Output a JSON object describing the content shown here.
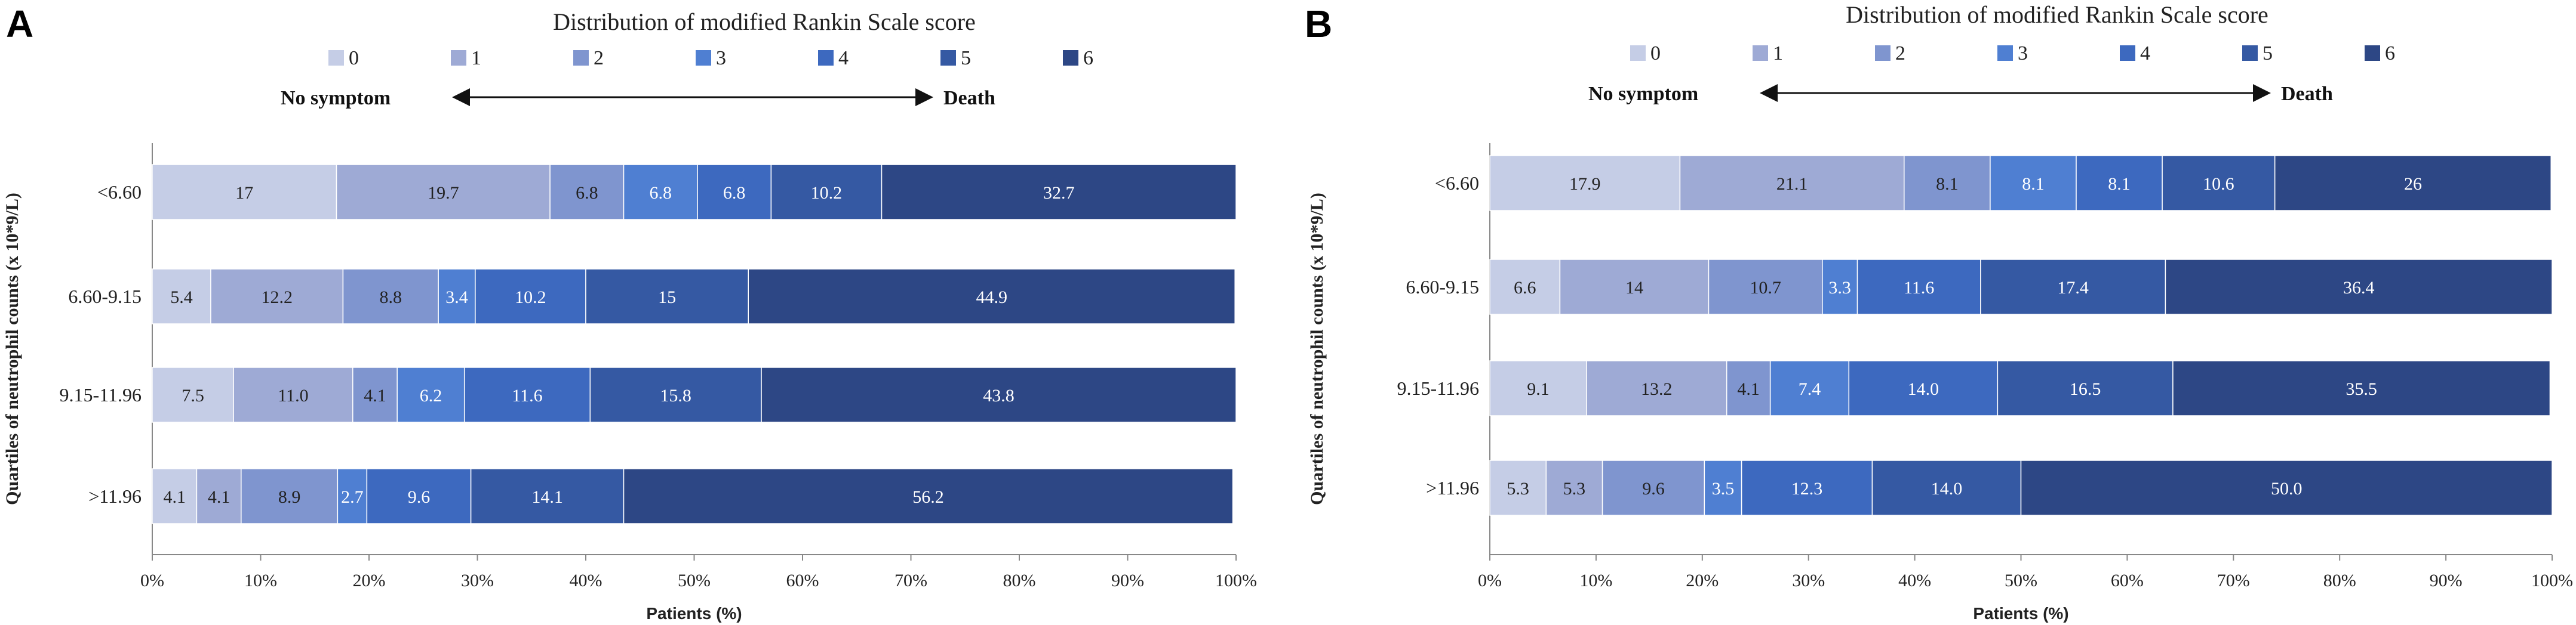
{
  "chart_data": [
    {
      "panel": "A",
      "type": "bar",
      "orientation": "horizontal",
      "stacked": true,
      "title": "Distribution of modified Rankin Scale score",
      "xlabel": "Patients (%)",
      "ylabel": "Quartiles of neutrophil counts (x 10*9/L)",
      "xlim": [
        0,
        100
      ],
      "xticks": [
        "0%",
        "10%",
        "20%",
        "30%",
        "40%",
        "50%",
        "60%",
        "70%",
        "80%",
        "90%",
        "100%"
      ],
      "scale_left": "No symptom",
      "scale_right": "Death",
      "legend": [
        "0",
        "1",
        "2",
        "3",
        "4",
        "5",
        "6"
      ],
      "categories": [
        "<6.60",
        "6.60-9.15",
        "9.15-11.96",
        ">11.96"
      ],
      "series": [
        {
          "name": "0",
          "values": [
            17,
            5.4,
            7.5,
            4.1
          ],
          "labels": [
            "17",
            "5.4",
            "7.5",
            "4.1"
          ]
        },
        {
          "name": "1",
          "values": [
            19.7,
            12.2,
            11.0,
            4.1
          ],
          "labels": [
            "19.7",
            "12.2",
            "11.0",
            "4.1"
          ]
        },
        {
          "name": "2",
          "values": [
            6.8,
            8.8,
            4.1,
            8.9
          ],
          "labels": [
            "6.8",
            "8.8",
            "4.1",
            "8.9"
          ]
        },
        {
          "name": "3",
          "values": [
            6.8,
            3.4,
            6.2,
            2.7
          ],
          "labels": [
            "6.8",
            "3.4",
            "6.2",
            "2.7"
          ]
        },
        {
          "name": "4",
          "values": [
            6.8,
            10.2,
            11.6,
            9.6
          ],
          "labels": [
            "6.8",
            "10.2",
            "11.6",
            "9.6"
          ]
        },
        {
          "name": "5",
          "values": [
            10.2,
            15,
            15.8,
            14.1
          ],
          "labels": [
            "10.2",
            "15",
            "15.8",
            "14.1"
          ]
        },
        {
          "name": "6",
          "values": [
            32.7,
            44.9,
            43.8,
            56.2
          ],
          "labels": [
            "32.7",
            "44.9",
            "43.8",
            "56.2"
          ]
        }
      ]
    },
    {
      "panel": "B",
      "type": "bar",
      "orientation": "horizontal",
      "stacked": true,
      "title": "Distribution of modified Rankin Scale score",
      "xlabel": "Patients (%)",
      "ylabel": "Quartiles of neutrophil counts (x 10*9/L)",
      "xlim": [
        0,
        100
      ],
      "xticks": [
        "0%",
        "10%",
        "20%",
        "30%",
        "40%",
        "50%",
        "60%",
        "70%",
        "80%",
        "90%",
        "100%"
      ],
      "scale_left": "No symptom",
      "scale_right": "Death",
      "legend": [
        "0",
        "1",
        "2",
        "3",
        "4",
        "5",
        "6"
      ],
      "categories": [
        "<6.60",
        "6.60-9.15",
        "9.15-11.96",
        ">11.96"
      ],
      "series": [
        {
          "name": "0",
          "values": [
            17.9,
            6.6,
            9.1,
            5.3
          ],
          "labels": [
            "17.9",
            "6.6",
            "9.1",
            "5.3"
          ]
        },
        {
          "name": "1",
          "values": [
            21.1,
            14,
            13.2,
            5.3
          ],
          "labels": [
            "21.1",
            "14",
            "13.2",
            "5.3"
          ]
        },
        {
          "name": "2",
          "values": [
            8.1,
            10.7,
            4.1,
            9.6
          ],
          "labels": [
            "8.1",
            "10.7",
            "4.1",
            "9.6"
          ]
        },
        {
          "name": "3",
          "values": [
            8.1,
            3.3,
            7.4,
            3.5
          ],
          "labels": [
            "8.1",
            "3.3",
            "7.4",
            "3.5"
          ]
        },
        {
          "name": "4",
          "values": [
            8.1,
            11.6,
            14.0,
            12.3
          ],
          "labels": [
            "8.1",
            "11.6",
            "14.0",
            "12.3"
          ]
        },
        {
          "name": "5",
          "values": [
            10.6,
            17.4,
            16.5,
            14.0
          ],
          "labels": [
            "10.6",
            "17.4",
            "16.5",
            "14.0"
          ]
        },
        {
          "name": "6",
          "values": [
            26,
            36.4,
            35.5,
            50.0
          ],
          "labels": [
            "26",
            "36.4",
            "35.5",
            "50.0"
          ]
        }
      ]
    }
  ],
  "colors": [
    "#c5cde6",
    "#9eaad5",
    "#7f95cf",
    "#4f7fd2",
    "#3d69bf",
    "#3559a3",
    "#2d4785"
  ],
  "label_colors": [
    "#222222",
    "#222222",
    "#222222",
    "#ffffff",
    "#ffffff",
    "#ffffff",
    "#ffffff"
  ]
}
